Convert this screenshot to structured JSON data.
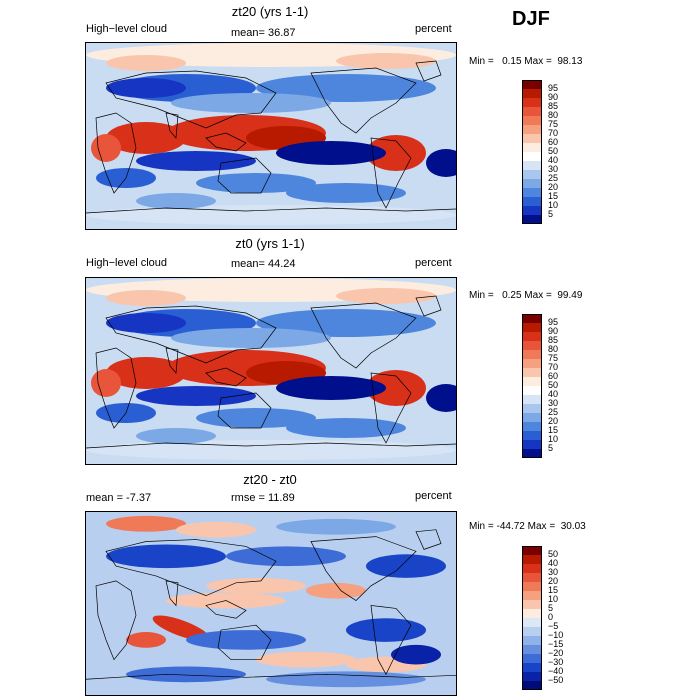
{
  "season": "DJF",
  "panels": [
    {
      "title": "zt20 (yrs 1-1)",
      "left_label": "High−level cloud",
      "center_label": "mean=  36.87",
      "right_label": "percent",
      "min_max": "Min =   0.15 Max =  98.13",
      "colorbar_labels": [
        "95",
        "90",
        "85",
        "80",
        "75",
        "70",
        "60",
        "50",
        "40",
        "30",
        "25",
        "20",
        "15",
        "10",
        "5"
      ],
      "colorbar_colors": [
        "#7a0000",
        "#b81a00",
        "#d9301a",
        "#e8553a",
        "#f07a58",
        "#f5a07e",
        "#f9c6ad",
        "#fdece0",
        "#ffffff",
        "#d6e4f5",
        "#a9c7ee",
        "#7da8e6",
        "#4f86dd",
        "#2a5fd4",
        "#1535c2",
        "#000f8c"
      ],
      "map_variant": "high"
    },
    {
      "title": "zt0 (yrs 1-1)",
      "left_label": "High−level cloud",
      "center_label": "mean=  44.24",
      "right_label": "percent",
      "min_max": "Min =   0.25 Max =  99.49",
      "colorbar_labels": [
        "95",
        "90",
        "85",
        "80",
        "75",
        "70",
        "60",
        "50",
        "40",
        "30",
        "25",
        "20",
        "15",
        "10",
        "5"
      ],
      "colorbar_colors": [
        "#7a0000",
        "#b81a00",
        "#d9301a",
        "#e8553a",
        "#f07a58",
        "#f5a07e",
        "#f9c6ad",
        "#fdece0",
        "#ffffff",
        "#d6e4f5",
        "#a9c7ee",
        "#7da8e6",
        "#4f86dd",
        "#2a5fd4",
        "#1535c2",
        "#000f8c"
      ],
      "map_variant": "high"
    },
    {
      "title": "zt20 - zt0",
      "left_label": "mean =   -7.37",
      "center_label": "rmse =  11.89",
      "right_label": "percent",
      "min_max": "Min = -44.72 Max =  30.03",
      "colorbar_labels": [
        "50",
        "40",
        "30",
        "20",
        "15",
        "10",
        "5",
        "0",
        "−5",
        "−10",
        "−15",
        "−20",
        "−30",
        "−40",
        "−50"
      ],
      "colorbar_colors": [
        "#7a0000",
        "#b81a00",
        "#d9301a",
        "#e8553a",
        "#f07a58",
        "#f5a07e",
        "#f9c6ad",
        "#fdece0",
        "#dde8f7",
        "#b8cff0",
        "#8fb2e8",
        "#6690df",
        "#3d6cd6",
        "#1a44c8",
        "#0a22a8",
        "#000c7a"
      ],
      "map_variant": "diff"
    }
  ]
}
